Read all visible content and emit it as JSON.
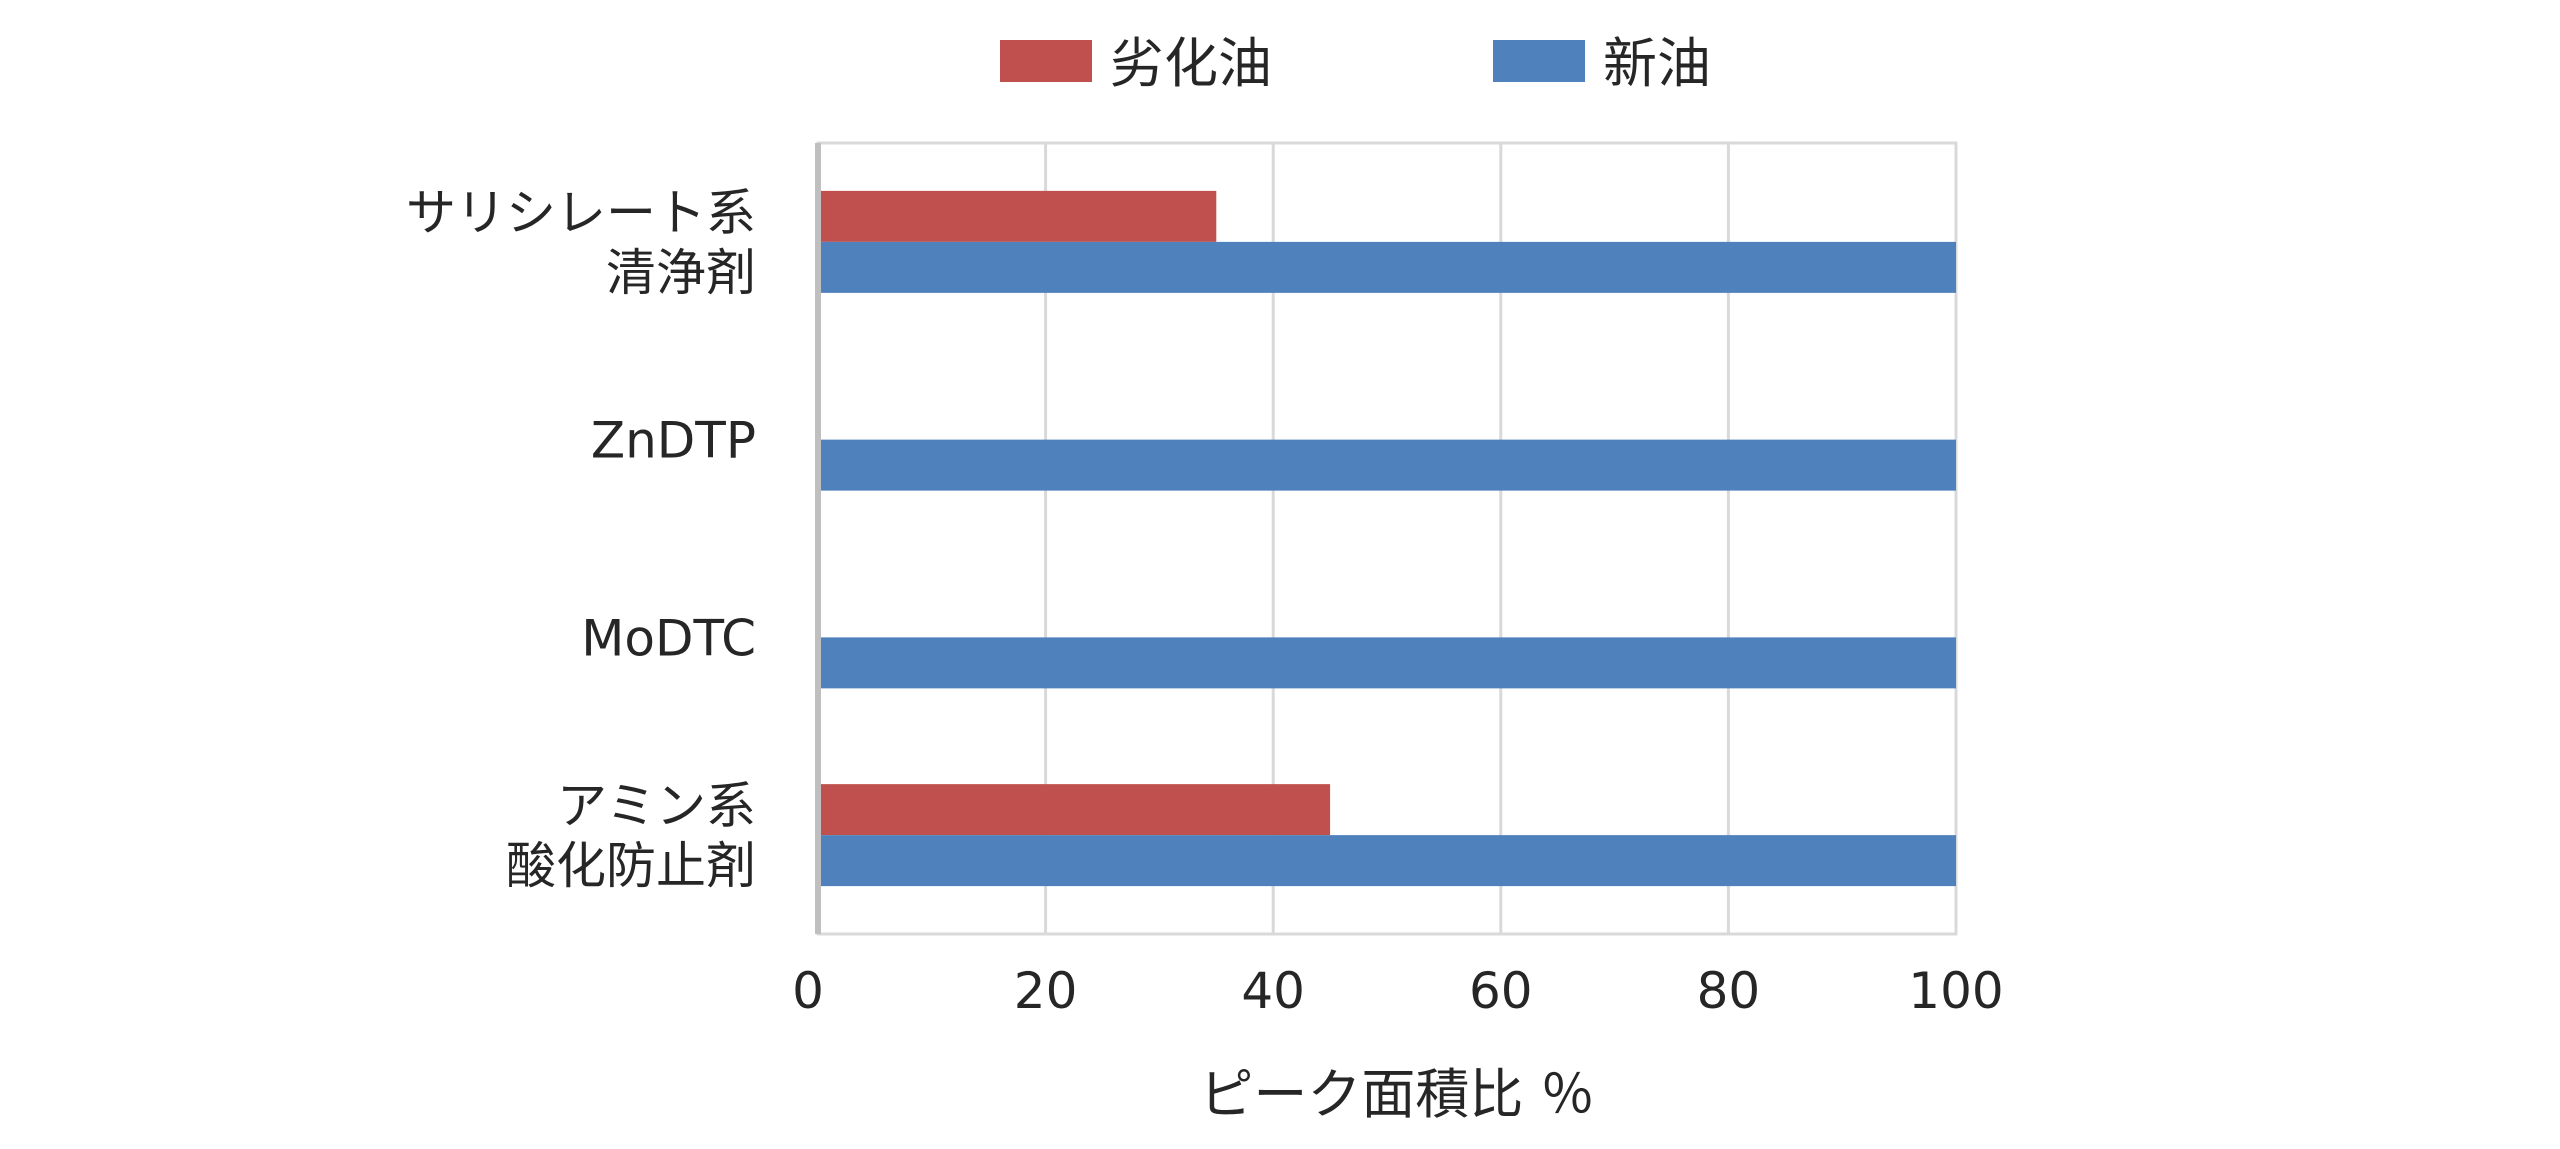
{
  "chart_data": {
    "type": "bar",
    "orientation": "horizontal",
    "categories": [
      [
        "サリシレート系",
        "清浄剤"
      ],
      [
        "ZnDTP"
      ],
      [
        "MoDTC"
      ],
      [
        "アミン系",
        "酸化防止剤"
      ]
    ],
    "series": [
      {
        "name": "劣化油",
        "color": "#C0504D",
        "values": [
          35,
          0,
          0,
          45
        ]
      },
      {
        "name": "新油",
        "color": "#4F81BD",
        "values": [
          100,
          100,
          100,
          100
        ]
      }
    ],
    "xlabel": "ピーク面積比 ％",
    "ylabel": "",
    "xlim": [
      0,
      100
    ],
    "xticks": [
      "0",
      "20",
      "40",
      "60",
      "80",
      "100"
    ],
    "grid": true,
    "legend": "top"
  }
}
